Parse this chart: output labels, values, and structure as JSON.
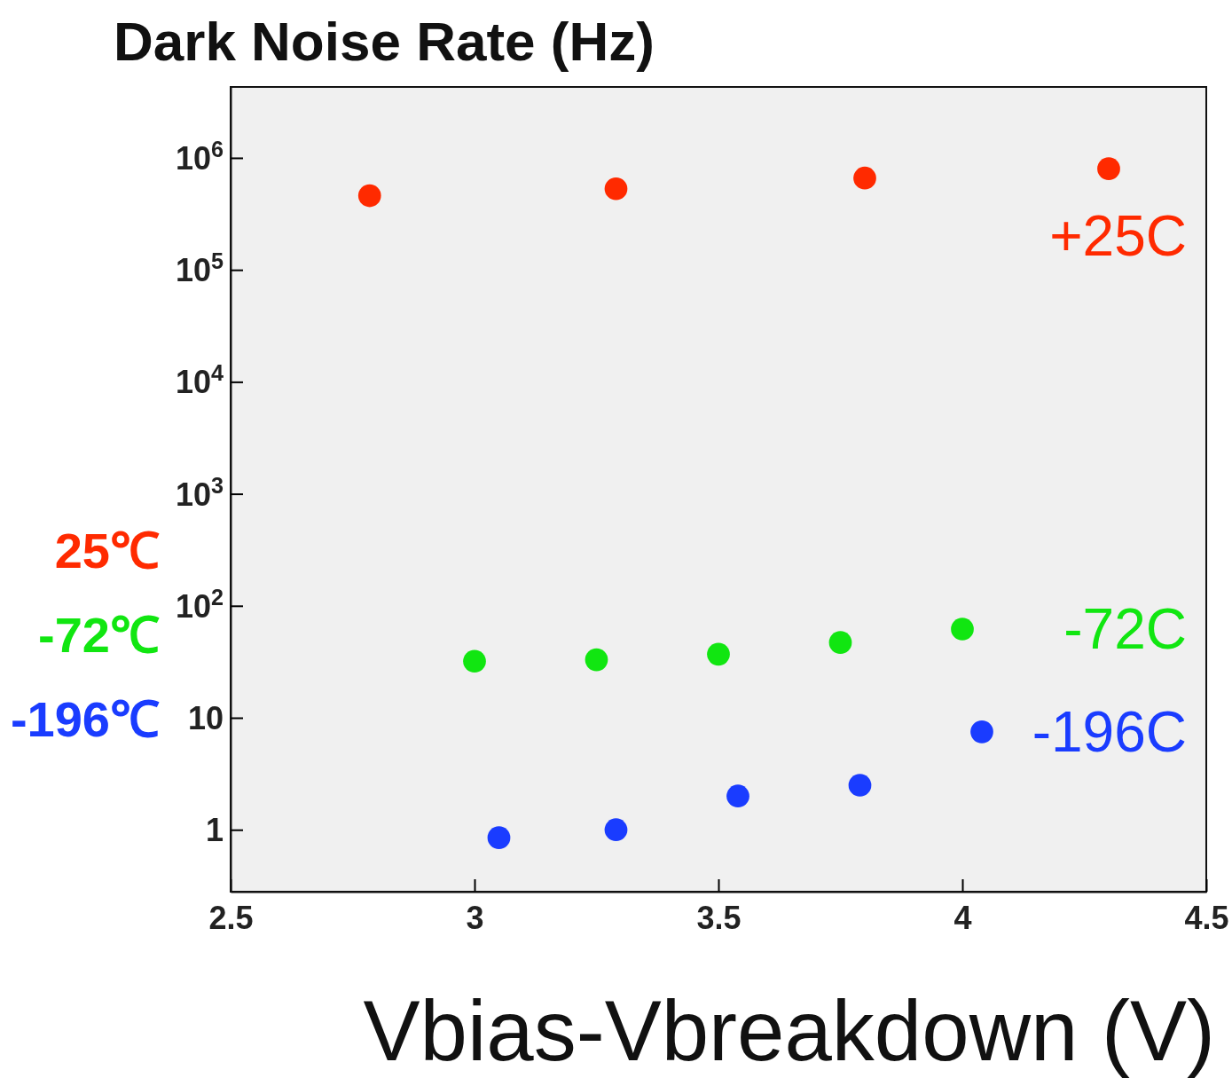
{
  "chart_data": {
    "type": "scatter",
    "title": "Dark Noise Rate (Hz)",
    "xlabel": "Vbias-Vbreakdown (V)",
    "xlim": [
      2.5,
      4.5
    ],
    "xticks": [
      2.5,
      3,
      3.5,
      4,
      4.5
    ],
    "ylim": [
      0.28,
      4300000
    ],
    "yticks": [
      1,
      10,
      {
        "value": 100,
        "label": "10$^{2}$"
      },
      {
        "value": 1000,
        "label": "10$^{3}$"
      },
      {
        "value": 10000,
        "label": "10$^{4}$"
      },
      {
        "value": 100000,
        "label": "10$^{5}$"
      },
      {
        "value": 1000000,
        "label": "10$^{6}$"
      }
    ],
    "log": "y",
    "grid": false,
    "marker": "circle",
    "legend": "right",
    "annotations": [
      "25℃",
      "-72℃",
      "-196℃"
    ],
    "series": [
      {
        "name": "+25C",
        "color": "#ff2a00",
        "x": [
          2.785,
          3.29,
          3.8,
          4.3
        ],
        "values": [
          460000,
          530000,
          660000,
          800000
        ]
      },
      {
        "name": "-72C",
        "color": "#11e611",
        "x": [
          3.0,
          3.25,
          3.5,
          3.75,
          4.0
        ],
        "values": [
          32,
          33,
          37,
          47,
          62
        ]
      },
      {
        "name": "-196C",
        "color": "#1a3cff",
        "x": [
          3.05,
          3.29,
          3.54,
          3.79,
          4.04
        ],
        "values": [
          0.85,
          1.0,
          2.0,
          2.5,
          7.5
        ]
      }
    ]
  }
}
